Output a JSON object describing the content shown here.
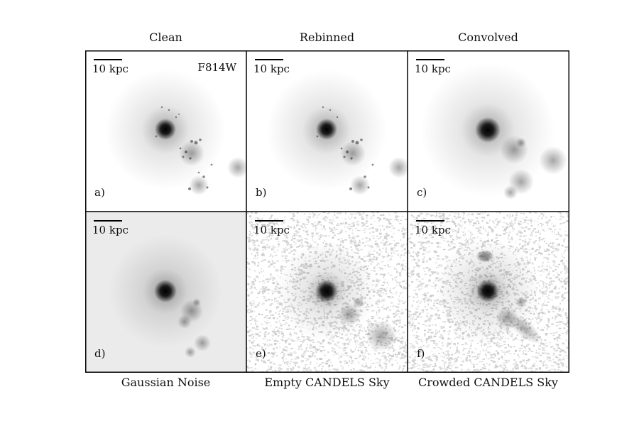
{
  "columns": [
    "Clean",
    "Rebinned",
    "Convolved"
  ],
  "bottom_labels": [
    "Gaussian Noise",
    "Empty CANDELS Sky",
    "Crowded CANDELS Sky"
  ],
  "scale_label": "10 kpc",
  "filter_label": "F814W",
  "panels": [
    {
      "letter": "a)",
      "background": "clean"
    },
    {
      "letter": "b)",
      "background": "clean"
    },
    {
      "letter": "c)",
      "background": "clean"
    },
    {
      "letter": "d)",
      "background": "gaussian-noise"
    },
    {
      "letter": "e)",
      "background": "empty-candels-sky"
    },
    {
      "letter": "f)",
      "background": "crowded-candels-sky"
    }
  ]
}
